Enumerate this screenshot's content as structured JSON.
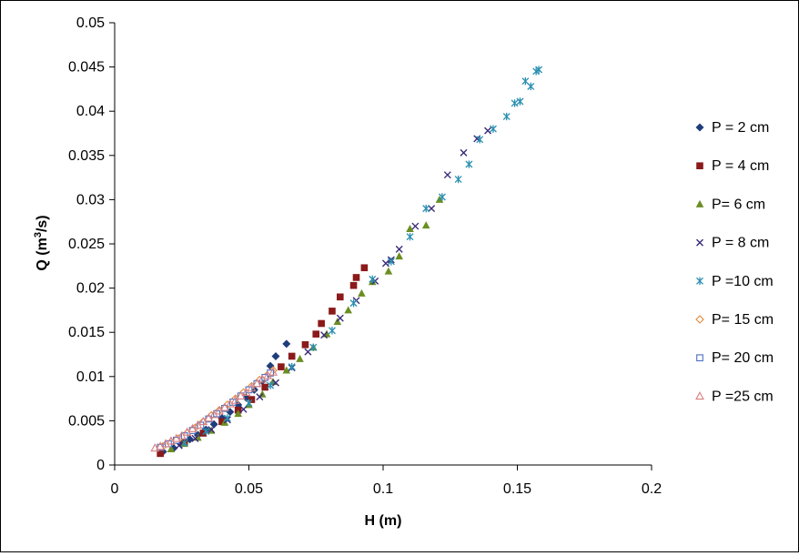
{
  "chart_data": {
    "type": "scatter",
    "title": "",
    "xlabel": "H (m)",
    "ylabel_parts": [
      "Q (m",
      "3",
      "/s)"
    ],
    "xlim": [
      0,
      0.2
    ],
    "ylim": [
      0,
      0.05
    ],
    "x_ticks": [
      0,
      0.05,
      0.1,
      0.15,
      0.2
    ],
    "x_tick_labels": [
      "0",
      "0.05",
      "0.1",
      "0.15",
      "0.2"
    ],
    "y_ticks": [
      0,
      0.005,
      0.01,
      0.015,
      0.02,
      0.025,
      0.03,
      0.035,
      0.04,
      0.045,
      0.05
    ],
    "y_tick_labels": [
      "0",
      "0.005",
      "0.01",
      "0.015",
      "0.02",
      "0.025",
      "0.03",
      "0.035",
      "0.04",
      "0.045",
      "0.05"
    ],
    "grid": false,
    "legend_position": "right",
    "series": [
      {
        "name": "P = 2 cm",
        "marker": "diamond",
        "color": "#1F3D7A",
        "points": [
          [
            0.018,
            0.0015
          ],
          [
            0.022,
            0.0019
          ],
          [
            0.025,
            0.0024
          ],
          [
            0.028,
            0.0029
          ],
          [
            0.031,
            0.0034
          ],
          [
            0.034,
            0.004
          ],
          [
            0.037,
            0.0046
          ],
          [
            0.04,
            0.0053
          ],
          [
            0.043,
            0.006
          ],
          [
            0.046,
            0.0068
          ],
          [
            0.049,
            0.0076
          ],
          [
            0.052,
            0.0085
          ],
          [
            0.055,
            0.0095
          ],
          [
            0.058,
            0.0112
          ],
          [
            0.06,
            0.0123
          ],
          [
            0.064,
            0.0137
          ]
        ]
      },
      {
        "name": "P = 4 cm",
        "marker": "square",
        "color": "#8B1A1A",
        "points": [
          [
            0.017,
            0.0013
          ],
          [
            0.026,
            0.0025
          ],
          [
            0.033,
            0.0036
          ],
          [
            0.04,
            0.0049
          ],
          [
            0.046,
            0.0062
          ],
          [
            0.051,
            0.0074
          ],
          [
            0.056,
            0.0088
          ],
          [
            0.062,
            0.0111
          ],
          [
            0.066,
            0.0123
          ],
          [
            0.071,
            0.0136
          ],
          [
            0.075,
            0.0148
          ],
          [
            0.077,
            0.016
          ],
          [
            0.081,
            0.0174
          ],
          [
            0.084,
            0.019
          ],
          [
            0.089,
            0.0203
          ],
          [
            0.09,
            0.0212
          ],
          [
            0.093,
            0.0223
          ]
        ]
      },
      {
        "name": "P= 6 cm",
        "marker": "triangle",
        "color": "#6B8E23",
        "points": [
          [
            0.021,
            0.0018
          ],
          [
            0.026,
            0.0024
          ],
          [
            0.031,
            0.0031
          ],
          [
            0.036,
            0.0039
          ],
          [
            0.041,
            0.0048
          ],
          [
            0.046,
            0.0058
          ],
          [
            0.05,
            0.0068
          ],
          [
            0.055,
            0.008
          ],
          [
            0.059,
            0.0094
          ],
          [
            0.064,
            0.0107
          ],
          [
            0.069,
            0.012
          ],
          [
            0.074,
            0.0133
          ],
          [
            0.079,
            0.0148
          ],
          [
            0.083,
            0.0162
          ],
          [
            0.087,
            0.0175
          ],
          [
            0.092,
            0.0194
          ],
          [
            0.096,
            0.0207
          ],
          [
            0.102,
            0.0219
          ],
          [
            0.106,
            0.0236
          ],
          [
            0.11,
            0.0267
          ],
          [
            0.116,
            0.0271
          ],
          [
            0.121,
            0.03
          ]
        ]
      },
      {
        "name": "P = 8 cm",
        "marker": "x",
        "color": "#3A2A7A",
        "points": [
          [
            0.024,
            0.0022
          ],
          [
            0.03,
            0.003
          ],
          [
            0.036,
            0.004
          ],
          [
            0.042,
            0.0051
          ],
          [
            0.048,
            0.0063
          ],
          [
            0.054,
            0.0077
          ],
          [
            0.06,
            0.0093
          ],
          [
            0.066,
            0.011
          ],
          [
            0.072,
            0.0128
          ],
          [
            0.078,
            0.0147
          ],
          [
            0.084,
            0.0166
          ],
          [
            0.09,
            0.0186
          ],
          [
            0.097,
            0.0208
          ],
          [
            0.101,
            0.0228
          ],
          [
            0.103,
            0.0232
          ],
          [
            0.106,
            0.0244
          ],
          [
            0.112,
            0.027
          ],
          [
            0.118,
            0.029
          ],
          [
            0.124,
            0.0328
          ],
          [
            0.13,
            0.0353
          ],
          [
            0.135,
            0.0369
          ],
          [
            0.139,
            0.0378
          ]
        ]
      },
      {
        "name": "P =10 cm",
        "marker": "asterisk",
        "color": "#2A8FB0",
        "points": [
          [
            0.026,
            0.0025
          ],
          [
            0.034,
            0.0038
          ],
          [
            0.042,
            0.0053
          ],
          [
            0.05,
            0.007
          ],
          [
            0.058,
            0.009
          ],
          [
            0.066,
            0.0111
          ],
          [
            0.074,
            0.0133
          ],
          [
            0.081,
            0.0152
          ],
          [
            0.089,
            0.0183
          ],
          [
            0.096,
            0.021
          ],
          [
            0.103,
            0.023
          ],
          [
            0.11,
            0.0258
          ],
          [
            0.116,
            0.029
          ],
          [
            0.122,
            0.0303
          ],
          [
            0.128,
            0.0323
          ],
          [
            0.132,
            0.034
          ],
          [
            0.136,
            0.0368
          ],
          [
            0.141,
            0.038
          ],
          [
            0.146,
            0.0394
          ],
          [
            0.149,
            0.0409
          ],
          [
            0.151,
            0.0411
          ],
          [
            0.153,
            0.0434
          ],
          [
            0.155,
            0.0428
          ],
          [
            0.157,
            0.0445
          ],
          [
            0.158,
            0.0447
          ]
        ]
      },
      {
        "name": "P= 15 cm",
        "marker": "open-diamond",
        "color": "#E0883A",
        "points": [
          [
            0.018,
            0.0021
          ],
          [
            0.021,
            0.0026
          ],
          [
            0.024,
            0.003
          ],
          [
            0.027,
            0.0036
          ],
          [
            0.03,
            0.0042
          ],
          [
            0.033,
            0.0049
          ],
          [
            0.036,
            0.0056
          ],
          [
            0.039,
            0.0062
          ],
          [
            0.042,
            0.0068
          ],
          [
            0.045,
            0.0075
          ],
          [
            0.048,
            0.0082
          ],
          [
            0.051,
            0.0089
          ],
          [
            0.054,
            0.0096
          ],
          [
            0.057,
            0.0102
          ],
          [
            0.059,
            0.0107
          ]
        ]
      },
      {
        "name": "P= 20 cm",
        "marker": "open-square",
        "color": "#4A6FC4",
        "points": [
          [
            0.017,
            0.002
          ],
          [
            0.02,
            0.0024
          ],
          [
            0.023,
            0.0028
          ],
          [
            0.026,
            0.0033
          ],
          [
            0.029,
            0.0039
          ],
          [
            0.032,
            0.0045
          ],
          [
            0.035,
            0.0052
          ],
          [
            0.038,
            0.0058
          ],
          [
            0.041,
            0.0064
          ],
          [
            0.044,
            0.0071
          ],
          [
            0.047,
            0.0078
          ],
          [
            0.05,
            0.0085
          ],
          [
            0.053,
            0.0092
          ],
          [
            0.056,
            0.0099
          ],
          [
            0.058,
            0.0104
          ]
        ]
      },
      {
        "name": "P =25 cm",
        "marker": "open-triangle",
        "color": "#D98080",
        "points": [
          [
            0.015,
            0.0019
          ],
          [
            0.017,
            0.0021
          ],
          [
            0.019,
            0.0024
          ],
          [
            0.021,
            0.0027
          ],
          [
            0.023,
            0.003
          ],
          [
            0.025,
            0.0033
          ],
          [
            0.027,
            0.0037
          ],
          [
            0.029,
            0.0041
          ],
          [
            0.031,
            0.0045
          ],
          [
            0.033,
            0.0049
          ],
          [
            0.035,
            0.0053
          ],
          [
            0.037,
            0.0057
          ],
          [
            0.039,
            0.0061
          ],
          [
            0.041,
            0.0065
          ],
          [
            0.043,
            0.0069
          ],
          [
            0.045,
            0.0073
          ],
          [
            0.047,
            0.0078
          ],
          [
            0.049,
            0.0082
          ],
          [
            0.051,
            0.0087
          ],
          [
            0.053,
            0.0092
          ],
          [
            0.055,
            0.0097
          ],
          [
            0.057,
            0.0101
          ],
          [
            0.059,
            0.0105
          ]
        ]
      }
    ]
  }
}
